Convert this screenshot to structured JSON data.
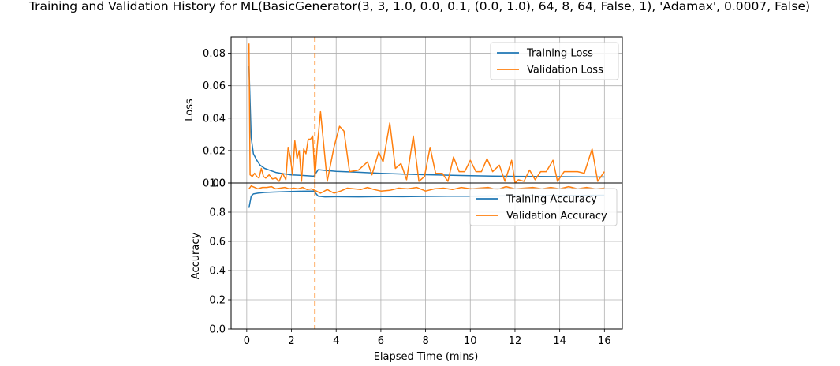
{
  "figure": {
    "title": "Training and Validation History for ML(BasicGenerator(3, 3, 1.0, 0.0, 0.1, (0.0, 1.0), 64, 8, 64, False, 1), 'Adamax', 0.0007, False)",
    "xlabel": "Elapsed Time (mins)"
  },
  "colors": {
    "training": "#1f77b4",
    "validation": "#ff7f0e",
    "grid": "#b0b0b0"
  },
  "chart_data": [
    {
      "type": "line",
      "ylabel": "Loss",
      "xlim": [
        -0.7,
        16.8
      ],
      "ylim": [
        0,
        0.09
      ],
      "xticks": [
        0,
        2,
        4,
        6,
        8,
        10,
        12,
        14,
        16
      ],
      "yticks": [
        0.0,
        0.02,
        0.04,
        0.06,
        0.08
      ],
      "ytick_labels": [
        "0.00",
        "0.02",
        "0.04",
        "0.06",
        "0.08"
      ],
      "grid": true,
      "legend": "top-right",
      "vline_x": 3.05,
      "series": [
        {
          "name": "Training Loss",
          "color": "#1f77b4",
          "x": [
            0.1,
            0.2,
            0.3,
            0.45,
            0.6,
            0.8,
            1.0,
            1.3,
            1.6,
            2.0,
            2.4,
            2.8,
            3.0,
            3.2,
            3.5,
            4.0,
            5.0,
            6.0,
            7.0,
            8.0,
            9.0,
            10.0,
            11.0,
            12.0,
            13.0,
            14.0,
            15.0,
            16.0
          ],
          "y": [
            0.072,
            0.028,
            0.018,
            0.014,
            0.011,
            0.009,
            0.008,
            0.0065,
            0.0058,
            0.005,
            0.0047,
            0.0044,
            0.0042,
            0.0082,
            0.0078,
            0.0072,
            0.0066,
            0.006,
            0.0055,
            0.0051,
            0.0048,
            0.0045,
            0.0043,
            0.0041,
            0.004,
            0.0039,
            0.0038,
            0.0037
          ]
        },
        {
          "name": "Validation Loss",
          "color": "#ff7f0e",
          "x": [
            0.1,
            0.15,
            0.25,
            0.35,
            0.45,
            0.55,
            0.65,
            0.75,
            0.85,
            1.0,
            1.15,
            1.3,
            1.45,
            1.6,
            1.75,
            1.85,
            1.95,
            2.05,
            2.15,
            2.25,
            2.35,
            2.45,
            2.55,
            2.65,
            2.75,
            2.85,
            2.95,
            3.05,
            3.15,
            3.3,
            3.6,
            3.9,
            4.15,
            4.35,
            4.6,
            5.0,
            5.4,
            5.6,
            5.9,
            6.1,
            6.4,
            6.65,
            6.9,
            7.15,
            7.45,
            7.7,
            7.95,
            8.2,
            8.45,
            8.75,
            9.0,
            9.25,
            9.5,
            9.75,
            10.0,
            10.25,
            10.5,
            10.75,
            11.0,
            11.3,
            11.55,
            11.85,
            12.0,
            12.15,
            12.4,
            12.65,
            12.9,
            13.15,
            13.4,
            13.7,
            13.9,
            14.2,
            14.5,
            14.8,
            15.1,
            15.45,
            15.7,
            16.0
          ],
          "y": [
            0.086,
            0.005,
            0.004,
            0.006,
            0.004,
            0.003,
            0.009,
            0.004,
            0.003,
            0.005,
            0.0025,
            0.003,
            0.001,
            0.006,
            0.002,
            0.022,
            0.016,
            0.005,
            0.026,
            0.015,
            0.02,
            0.001,
            0.021,
            0.018,
            0.027,
            0.027,
            0.029,
            0.003,
            0.022,
            0.044,
            0.001,
            0.022,
            0.035,
            0.032,
            0.007,
            0.008,
            0.013,
            0.005,
            0.019,
            0.013,
            0.037,
            0.009,
            0.012,
            0.002,
            0.029,
            0.001,
            0.004,
            0.022,
            0.006,
            0.006,
            0.001,
            0.016,
            0.007,
            0.007,
            0.014,
            0.007,
            0.007,
            0.015,
            0.007,
            0.011,
            0.001,
            0.014,
            0.0,
            0.002,
            0.001,
            0.008,
            0.002,
            0.007,
            0.007,
            0.014,
            0.001,
            0.007,
            0.007,
            0.007,
            0.006,
            0.021,
            0.001,
            0.007
          ]
        }
      ]
    },
    {
      "type": "line",
      "ylabel": "Accuracy",
      "xlim": [
        -0.7,
        16.8
      ],
      "ylim": [
        0,
        1.0
      ],
      "xticks": [
        0,
        2,
        4,
        6,
        8,
        10,
        12,
        14,
        16
      ],
      "yticks": [
        0.0,
        0.2,
        0.4,
        0.6,
        0.8,
        1.0
      ],
      "ytick_labels": [
        "0.0",
        "0.2",
        "0.4",
        "0.6",
        "0.8",
        "1.0"
      ],
      "grid": true,
      "legend": "top-right",
      "vline_x": 3.05,
      "series": [
        {
          "name": "Training Accuracy",
          "color": "#1f77b4",
          "x": [
            0.1,
            0.2,
            0.3,
            0.5,
            0.8,
            1.2,
            1.6,
            2.0,
            2.5,
            3.0,
            3.2,
            3.5,
            4.0,
            5.0,
            6.0,
            7.0,
            8.0,
            9.0,
            10.0,
            11.0,
            12.0,
            13.0,
            14.0,
            15.0,
            16.0
          ],
          "y": [
            0.83,
            0.91,
            0.925,
            0.93,
            0.935,
            0.938,
            0.94,
            0.942,
            0.944,
            0.945,
            0.91,
            0.905,
            0.906,
            0.905,
            0.907,
            0.906,
            0.908,
            0.909,
            0.91,
            0.911,
            0.912,
            0.913,
            0.914,
            0.915,
            0.916
          ]
        },
        {
          "name": "Validation Accuracy",
          "color": "#ff7f0e",
          "x": [
            0.1,
            0.2,
            0.35,
            0.5,
            0.7,
            0.9,
            1.1,
            1.3,
            1.5,
            1.7,
            1.9,
            2.1,
            2.3,
            2.5,
            2.7,
            2.9,
            3.05,
            3.3,
            3.6,
            3.9,
            4.2,
            4.5,
            4.8,
            5.1,
            5.4,
            5.7,
            6.0,
            6.4,
            6.8,
            7.2,
            7.6,
            8.0,
            8.4,
            8.8,
            9.2,
            9.6,
            10.0,
            10.4,
            10.8,
            11.2,
            11.6,
            12.0,
            12.4,
            12.8,
            13.2,
            13.6,
            14.0,
            14.4,
            14.8,
            15.2,
            15.6,
            16.0
          ],
          "y": [
            0.96,
            0.98,
            0.97,
            0.96,
            0.97,
            0.97,
            0.975,
            0.96,
            0.965,
            0.97,
            0.96,
            0.965,
            0.96,
            0.97,
            0.955,
            0.96,
            0.95,
            0.93,
            0.955,
            0.93,
            0.945,
            0.965,
            0.96,
            0.955,
            0.97,
            0.955,
            0.945,
            0.95,
            0.965,
            0.96,
            0.97,
            0.945,
            0.96,
            0.965,
            0.955,
            0.97,
            0.96,
            0.965,
            0.97,
            0.955,
            0.975,
            0.96,
            0.965,
            0.97,
            0.96,
            0.97,
            0.96,
            0.975,
            0.96,
            0.97,
            0.96,
            0.965
          ]
        }
      ]
    }
  ]
}
